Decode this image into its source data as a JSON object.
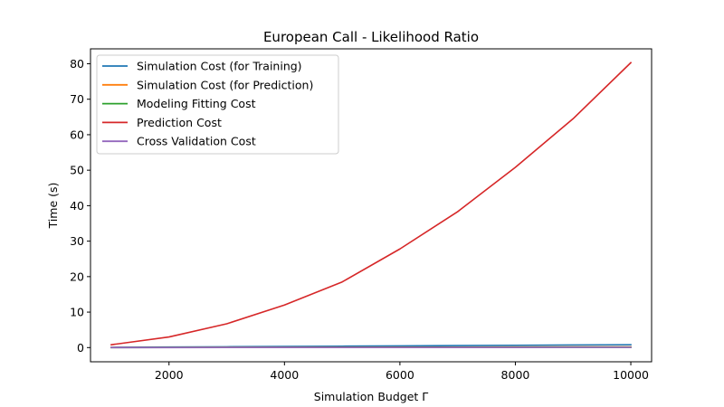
{
  "chart_data": {
    "type": "line",
    "title": "European Call - Likelihood Ratio",
    "xlabel": "Simulation Budget Γ",
    "ylabel": "Time (s)",
    "x": [
      1000,
      2000,
      3000,
      4000,
      5000,
      6000,
      7000,
      8000,
      9000,
      10000
    ],
    "xlim": [
      640,
      10360
    ],
    "ylim": [
      -4.0,
      84.2
    ],
    "xticks": [
      2000,
      4000,
      6000,
      8000,
      10000
    ],
    "yticks": [
      0,
      10,
      20,
      30,
      40,
      50,
      60,
      70,
      80
    ],
    "grid": false,
    "legend_position": "top-left",
    "series": [
      {
        "name": "Simulation Cost (for Training)",
        "color": "#1f77b4",
        "values": [
          0.08,
          0.16,
          0.24,
          0.32,
          0.4,
          0.48,
          0.56,
          0.64,
          0.72,
          0.8
        ]
      },
      {
        "name": "Simulation Cost (for Prediction)",
        "color": "#ff7f0e",
        "values": [
          0.02,
          0.04,
          0.06,
          0.08,
          0.1,
          0.12,
          0.14,
          0.16,
          0.18,
          0.2
        ]
      },
      {
        "name": "Modeling Fitting Cost",
        "color": "#2ca02c",
        "values": [
          0.01,
          0.02,
          0.03,
          0.04,
          0.05,
          0.06,
          0.07,
          0.08,
          0.09,
          0.1
        ]
      },
      {
        "name": "Prediction Cost",
        "color": "#d62728",
        "values": [
          0.8,
          3.0,
          6.7,
          12.0,
          18.5,
          27.8,
          38.3,
          50.8,
          64.5,
          80.3
        ]
      },
      {
        "name": "Cross Validation Cost",
        "color": "#9467bd",
        "values": [
          0.01,
          0.01,
          0.02,
          0.02,
          0.03,
          0.03,
          0.04,
          0.04,
          0.05,
          0.05
        ]
      }
    ]
  }
}
